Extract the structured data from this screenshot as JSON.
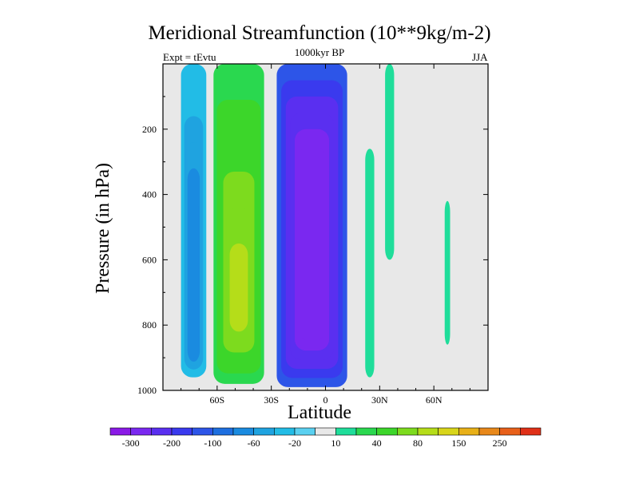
{
  "chart_data": {
    "type": "filled-contour",
    "title": "Meridional Streamfunction (10**9kg/m-2)",
    "subtitle": "1000kyr BP",
    "left_label": "Expt = tEvtu",
    "right_label": "JJA",
    "xlabel": "Latitude",
    "ylabel": "Pressure (in hPa)",
    "xlim": [
      -90,
      90
    ],
    "ylim": [
      1000,
      0
    ],
    "x_ticks": [
      {
        "value": -60,
        "label": "60S"
      },
      {
        "value": -30,
        "label": "30S"
      },
      {
        "value": 0,
        "label": "0"
      },
      {
        "value": 30,
        "label": "30N"
      },
      {
        "value": 60,
        "label": "60N"
      }
    ],
    "y_ticks": [
      {
        "value": 200,
        "label": "200"
      },
      {
        "value": 400,
        "label": "400"
      },
      {
        "value": 600,
        "label": "600"
      },
      {
        "value": 800,
        "label": "800"
      },
      {
        "value": 1000,
        "label": "1000"
      }
    ],
    "colorbar": {
      "levels": [
        -300,
        -250,
        -200,
        -150,
        -100,
        -80,
        -60,
        -40,
        -20,
        -10,
        10,
        20,
        40,
        60,
        80,
        100,
        150,
        200,
        250,
        300
      ],
      "colors": [
        "#8A1AE6",
        "#7A28F0",
        "#5A2FF0",
        "#3A3AEE",
        "#2D55E8",
        "#1E6FE0",
        "#1A8BE0",
        "#1FA3E0",
        "#22BCE6",
        "#5AD0F0",
        "#E8E8E8",
        "#1FDD9A",
        "#2AD84F",
        "#3CD62A",
        "#7DDB1E",
        "#B5DD19",
        "#D8D51A",
        "#E8B018",
        "#E8881A",
        "#E8601A",
        "#E03018"
      ],
      "labels": [
        {
          "value": -300,
          "label": "-300"
        },
        {
          "value": -200,
          "label": "-200"
        },
        {
          "value": -100,
          "label": "-100"
        },
        {
          "value": -60,
          "label": "-60"
        },
        {
          "value": -20,
          "label": "-20"
        },
        {
          "value": 10,
          "label": "10"
        },
        {
          "value": 40,
          "label": "40"
        },
        {
          "value": 80,
          "label": "80"
        },
        {
          "value": 150,
          "label": "150"
        },
        {
          "value": 250,
          "label": "250"
        }
      ]
    },
    "cells": [
      {
        "name": "sh-polar-negative-cell",
        "lat": [
          -80,
          -66
        ],
        "p": [
          0,
          960
        ],
        "value": -30,
        "core": -80,
        "core_p": [
          400,
          900
        ]
      },
      {
        "name": "sh-midlat-positive-cell",
        "lat": [
          -62,
          -34
        ],
        "p": [
          0,
          980
        ],
        "value": 30,
        "core": 90,
        "core_p": [
          550,
          820
        ]
      },
      {
        "name": "hadley-negative-cell",
        "lat": [
          -27,
          12
        ],
        "p": [
          0,
          990
        ],
        "value": -150,
        "core": -300,
        "core_p": [
          250,
          850
        ]
      },
      {
        "name": "nh-tropical-positive-strip",
        "lat": [
          22,
          27
        ],
        "p": [
          260,
          960
        ],
        "value": 10
      },
      {
        "name": "nh-30n-strip",
        "lat": [
          33,
          38
        ],
        "p": [
          0,
          600
        ],
        "value": 10
      },
      {
        "name": "nh-60n-strip",
        "lat": [
          66,
          69
        ],
        "p": [
          420,
          860
        ],
        "value": 10
      }
    ]
  },
  "labels": {
    "title": "Meridional Streamfunction (10**9kg/m-2)",
    "subtitle": "1000kyr BP",
    "expt": "Expt = tEvtu",
    "season": "JJA",
    "xlabel": "Latitude",
    "ylabel": "Pressure (in hPa)"
  },
  "colors": {
    "background": "#E8E8E8",
    "frame": "#000000"
  }
}
